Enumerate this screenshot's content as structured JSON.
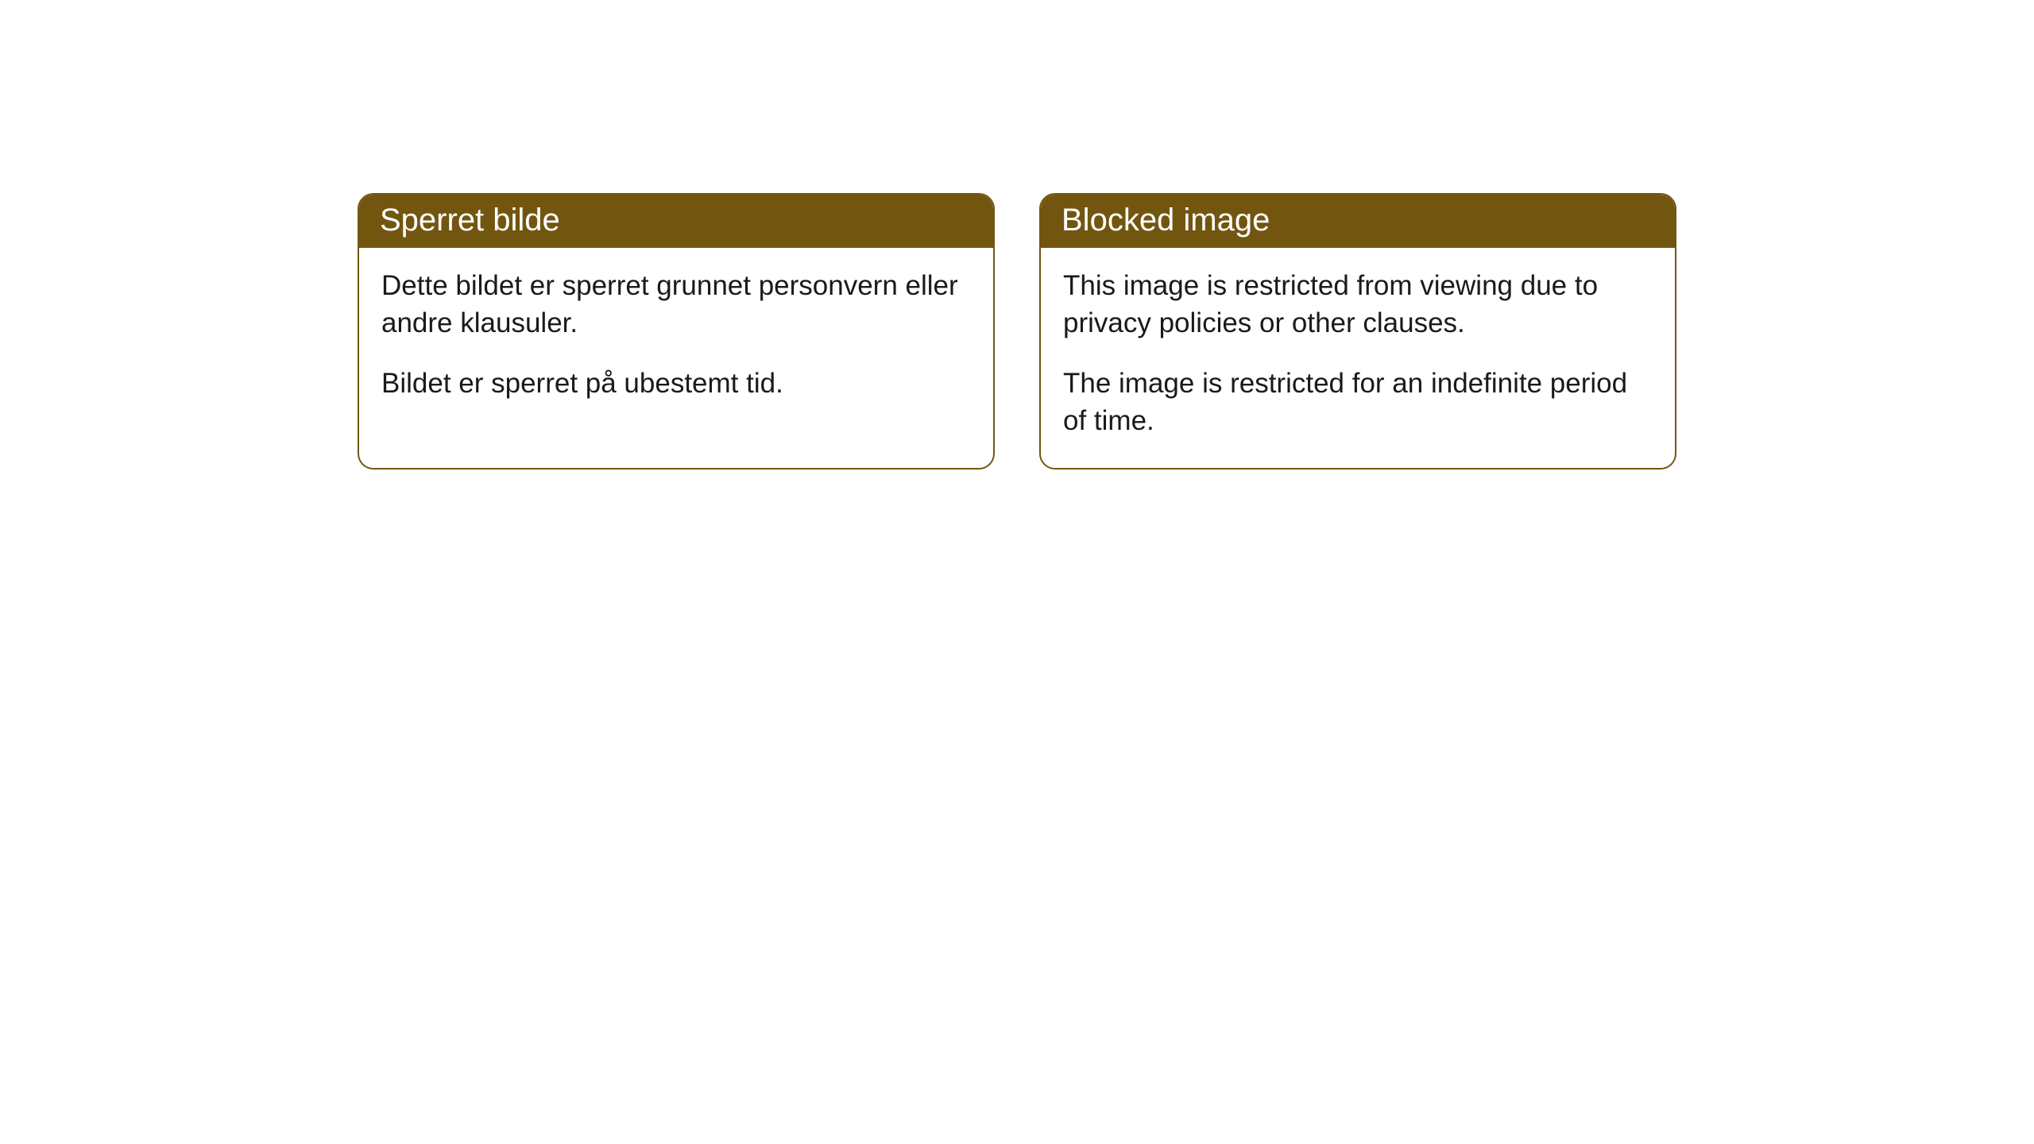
{
  "cards": {
    "left": {
      "title": "Sperret bilde",
      "paragraph1": "Dette bildet er sperret grunnet personvern eller andre klausuler.",
      "paragraph2": "Bildet er sperret på ubestemt tid."
    },
    "right": {
      "title": "Blocked image",
      "paragraph1": "This image is restricted from viewing due to privacy policies or other clauses.",
      "paragraph2": "The image is restricted for an indefinite period of time."
    }
  },
  "styling": {
    "header_bg_color": "#725610",
    "header_text_color": "#ffffff",
    "border_color": "#725610",
    "body_bg_color": "#ffffff",
    "body_text_color": "#1a1a1a",
    "border_radius": 20,
    "header_fontsize": 40,
    "body_fontsize": 35,
    "card_gap": 56
  }
}
